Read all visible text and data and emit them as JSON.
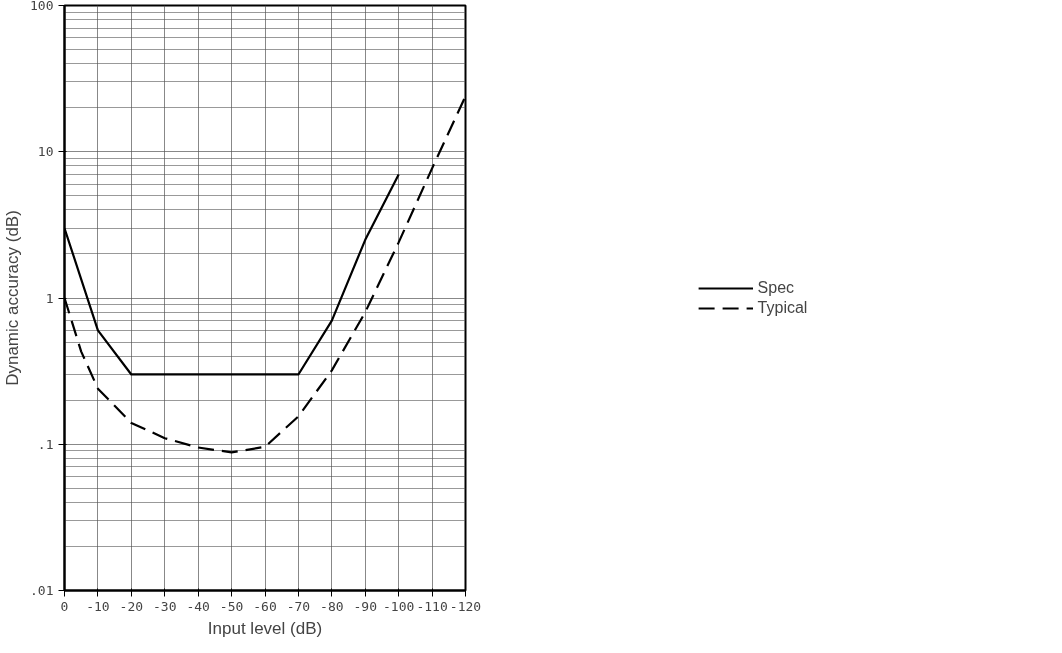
{
  "chart_data": {
    "type": "line",
    "xlabel": "Input level (dB)",
    "ylabel": "Dynamic accuracy (dB)",
    "log": true,
    "grid": true,
    "legend": "right",
    "xlim": [
      0,
      -120
    ],
    "xticks": [
      0,
      -10,
      -20,
      -30,
      -40,
      -50,
      -60,
      -70,
      -80,
      -90,
      -100,
      -110,
      -120
    ],
    "ylim": [
      0.01,
      100
    ],
    "yticks": [
      {
        "value": 0.01,
        "label": ".01"
      },
      {
        "value": 0.1,
        "label": ".1"
      },
      1,
      10,
      100
    ],
    "series": [
      {
        "name": "Spec",
        "color": "#000000",
        "line_style": "solid",
        "x": [
          0,
          -10,
          -20,
          -70,
          -80,
          -90,
          -100
        ],
        "values": [
          3,
          0.6,
          0.3,
          0.3,
          0.7,
          2.5,
          7
        ]
      },
      {
        "name": "Typical",
        "color": "#000000",
        "line_style": "dashed",
        "x": [
          0,
          -5,
          -10,
          -20,
          -30,
          -40,
          -50,
          -60,
          -70,
          -80,
          -90,
          -100,
          -110,
          -120
        ],
        "values": [
          1,
          0.43,
          0.24,
          0.14,
          0.11,
          0.095,
          0.088,
          0.096,
          0.155,
          0.32,
          0.8,
          2.4,
          7.7,
          24
        ]
      }
    ]
  }
}
